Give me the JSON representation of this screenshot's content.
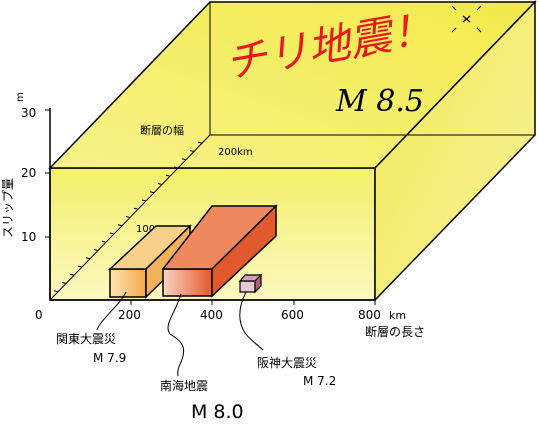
{
  "title": "チリ地震！",
  "title_magnitude": "M 8.5",
  "y_axis": {
    "label": "スリップ量",
    "unit": "m",
    "ticks": [
      "10",
      "20",
      "30"
    ]
  },
  "x_axis": {
    "label": "断層の長さ",
    "unit": "km",
    "ticks": [
      "0",
      "200",
      "400",
      "600",
      "800"
    ]
  },
  "z_axis": {
    "label": "断層の幅",
    "ticks": [
      "100",
      "200km"
    ]
  },
  "blocks": [
    {
      "name": "関東大震災",
      "magnitude": "M 7.9"
    },
    {
      "name": "南海地震",
      "magnitude": "M 8.0"
    },
    {
      "name": "阪神大震災",
      "magnitude": "M 7.2"
    }
  ],
  "colors": {
    "chile_fill": "#f3ee52",
    "chile_side": "#ece046",
    "title_red": "#e8191c",
    "kanto_fill": "#f5b75e",
    "nankai_fill": "#e65a2c",
    "hanshin_fill": "#c98aa0"
  }
}
